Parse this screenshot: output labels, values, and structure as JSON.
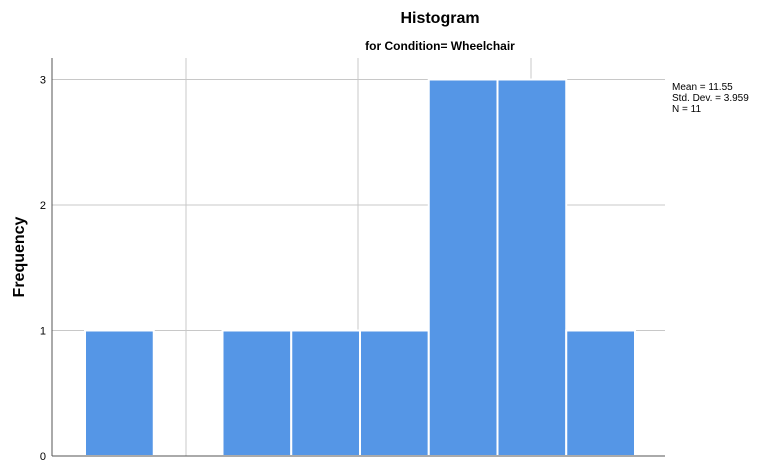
{
  "chart_data": {
    "type": "bar",
    "title": "Histogram",
    "subtitle": "for Condition= Wheelchair",
    "ylabel": "Frequency",
    "xlabel": "",
    "ylim": [
      0,
      3
    ],
    "yticks": [
      "0",
      "1",
      "2",
      "3"
    ],
    "bins": 8,
    "values": [
      1,
      0,
      1,
      1,
      1,
      3,
      3,
      1
    ],
    "bar_color": "#5596e6",
    "grid": true,
    "stats": {
      "mean": "Mean = 11.55",
      "std": "Std. Dev. = 3.959",
      "n": "N = 11"
    }
  }
}
